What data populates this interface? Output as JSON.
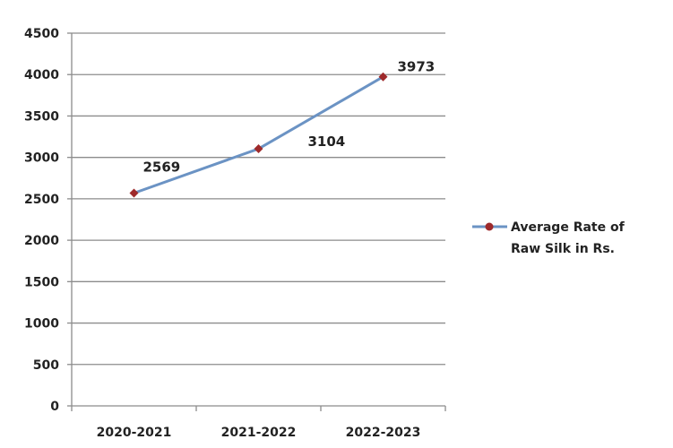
{
  "chart_data": {
    "type": "line",
    "title": "",
    "xlabel": "",
    "ylabel": "",
    "categories": [
      "2020-2021",
      "2021-2022",
      "2022-2023"
    ],
    "ylim": [
      0,
      4500
    ],
    "y_ticks": [
      0,
      500,
      1000,
      1500,
      2000,
      2500,
      3000,
      3500,
      4000,
      4500
    ],
    "grid": true,
    "legend_position": "right",
    "series": [
      {
        "name": "Average Rate of Raw Silk in Rs.",
        "legend_lines": [
          "Average Rate of",
          "Raw Silk in Rs."
        ],
        "values": [
          2569,
          3104,
          3973
        ],
        "data_labels": [
          "2569",
          "3104",
          "3973"
        ],
        "line_color": "#6b93c4",
        "marker_color": "#9e2a2b"
      }
    ]
  }
}
